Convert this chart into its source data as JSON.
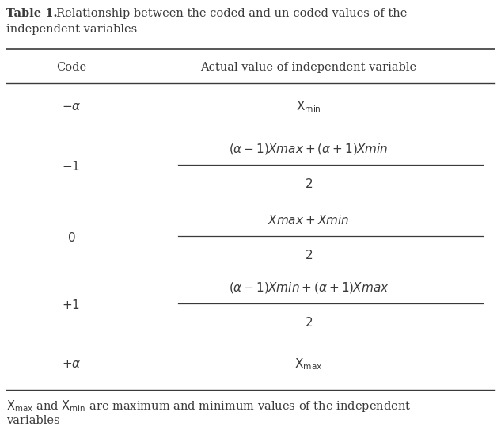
{
  "title_bold": "Table 1.",
  "title_rest": "  Relationship between the coded and un-coded values of the",
  "title_line2": "independent variables",
  "col1_header": "Code",
  "col2_header": "Actual value of independent variable",
  "rows": [
    {
      "code": "$-\\alpha$",
      "formula_top": "$\\mathrm{X}_{\\mathrm{min}}$",
      "formula_bottom": null
    },
    {
      "code": "$-1$",
      "formula_top": "$(\\alpha - 1)Xmax + (\\alpha + 1)Xmin$",
      "formula_bottom": "$2$"
    },
    {
      "code": "$0$",
      "formula_top": "$Xmax + Xmin$",
      "formula_bottom": "$2$"
    },
    {
      "code": "$+1$",
      "formula_top": "$(\\alpha - 1)Xmin + (\\alpha + 1)Xmax$",
      "formula_bottom": "$2$"
    },
    {
      "code": "$+\\alpha$",
      "formula_top": "$\\mathrm{X}_{\\mathrm{max}}$",
      "formula_bottom": null
    }
  ],
  "footer_parts": [
    {
      "text": "$\\mathrm{X}_{\\mathrm{max}}$",
      "style": "math"
    },
    {
      "text": " and ",
      "style": "normal"
    },
    {
      "text": "$\\mathrm{X}_{\\mathrm{min}}$",
      "style": "math"
    },
    {
      "text": " are maximum and minimum values of the independent\nvariables",
      "style": "normal"
    }
  ],
  "bg_color": "#ffffff",
  "text_color": "#3a3a3a",
  "line_color": "#3a3a3a",
  "title_fontsize": 10.5,
  "header_fontsize": 10.5,
  "cell_fontsize": 11,
  "footer_fontsize": 10.5
}
